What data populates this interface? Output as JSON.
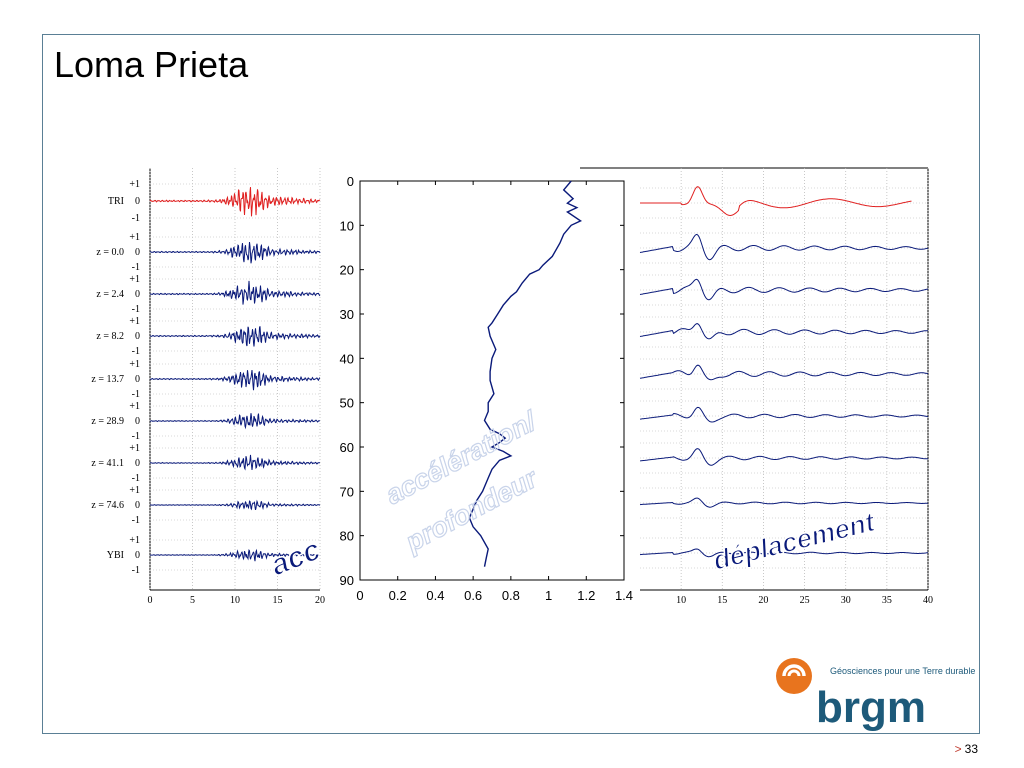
{
  "title": "Loma Prieta",
  "page_number": "33",
  "page_arrow": ">",
  "logo": {
    "tagline": "Géosciences pour une Terre durable",
    "name": "brgm"
  },
  "overlays": {
    "left": "acc",
    "middle_line1": "accélération/",
    "middle_line2": "profondeur",
    "right": "déplacement"
  },
  "colors": {
    "red_trace": "#e02020",
    "blue_trace": "#0a1a7a",
    "logo_orange": "#e8741e",
    "logo_blue": "#1d5a7a"
  },
  "chart_data": [
    {
      "type": "line",
      "panel": "acceleration",
      "xlim": [
        0,
        20
      ],
      "x_ticks": [
        "0",
        "5",
        "10",
        "15",
        "20"
      ],
      "traces": [
        {
          "label": "TRI",
          "color": "red",
          "level_labels": [
            "+1",
            "0",
            "-1"
          ]
        },
        {
          "label": "z = 0.0",
          "color": "blue",
          "level_labels": [
            "+1",
            "0",
            "-1"
          ]
        },
        {
          "label": "z = 2.4",
          "color": "blue",
          "level_labels": [
            "+1",
            "0",
            "-1"
          ]
        },
        {
          "label": "z = 8.2",
          "color": "blue",
          "level_labels": [
            "+1",
            "0",
            "-1"
          ]
        },
        {
          "label": "z = 13.7",
          "color": "blue",
          "level_labels": [
            "+1",
            "0",
            "-1"
          ]
        },
        {
          "label": "z = 28.9",
          "color": "blue",
          "level_labels": [
            "+1",
            "0",
            "-1"
          ]
        },
        {
          "label": "z = 41.1",
          "color": "blue",
          "level_labels": [
            "+1",
            "0",
            "-1"
          ]
        },
        {
          "label": "z = 74.6",
          "color": "blue",
          "level_labels": [
            "+1",
            "0",
            "-1"
          ]
        },
        {
          "label": "YBI",
          "color": "blue",
          "level_labels": [
            "+1",
            "0",
            "-1"
          ]
        }
      ]
    },
    {
      "type": "line",
      "panel": "acceleration-vs-depth",
      "xlim": [
        0,
        1.4
      ],
      "ylim": [
        0,
        90
      ],
      "x_ticks": [
        "0",
        "0.2",
        "0.4",
        "0.6",
        "0.8",
        "1",
        "1.2",
        "1.4"
      ],
      "y_ticks": [
        "0",
        "10",
        "20",
        "30",
        "40",
        "50",
        "60",
        "70",
        "80",
        "90"
      ],
      "series": [
        {
          "x": [
            1.12,
            1.08,
            1.13,
            1.1,
            1.15,
            1.1,
            1.17,
            1.12,
            1.08,
            1.06,
            1.02,
            0.97,
            0.95,
            0.9,
            0.86,
            0.83,
            0.8,
            0.76,
            0.73,
            0.7,
            0.68,
            0.69,
            0.72,
            0.7,
            0.69,
            0.69,
            0.71,
            0.68,
            0.68,
            0.66,
            0.69,
            0.74,
            0.77,
            0.74,
            0.7,
            0.76,
            0.8,
            0.74,
            0.7,
            0.68,
            0.65,
            0.62,
            0.6,
            0.58,
            0.6,
            0.64,
            0.68,
            0.67,
            0.66
          ],
          "y": [
            0,
            2,
            4,
            5,
            6,
            7,
            9,
            10,
            12,
            14,
            17,
            19,
            20,
            21,
            23,
            25,
            26,
            28,
            30,
            32,
            33,
            35,
            38,
            40,
            43,
            45,
            48,
            50,
            52,
            54,
            56,
            57,
            58,
            59,
            60,
            61,
            62,
            63,
            65,
            67,
            70,
            72,
            74,
            76,
            78,
            80,
            83,
            85,
            87
          ]
        }
      ]
    },
    {
      "type": "line",
      "panel": "displacement",
      "xlim": [
        5,
        40
      ],
      "x_ticks": [
        "10",
        "15",
        "20",
        "25",
        "30",
        "35",
        "40"
      ],
      "traces": [
        {
          "label": "TRI",
          "color": "red"
        },
        {
          "label": "z = 0.0",
          "color": "blue"
        },
        {
          "label": "z = 2.4",
          "color": "blue"
        },
        {
          "label": "z = 8.2",
          "color": "blue"
        },
        {
          "label": "z = 13.7",
          "color": "blue"
        },
        {
          "label": "z = 28.9",
          "color": "blue"
        },
        {
          "label": "z = 41.1",
          "color": "blue"
        },
        {
          "label": "z = 74.6",
          "color": "blue"
        },
        {
          "label": "YBI",
          "color": "blue"
        }
      ]
    }
  ]
}
